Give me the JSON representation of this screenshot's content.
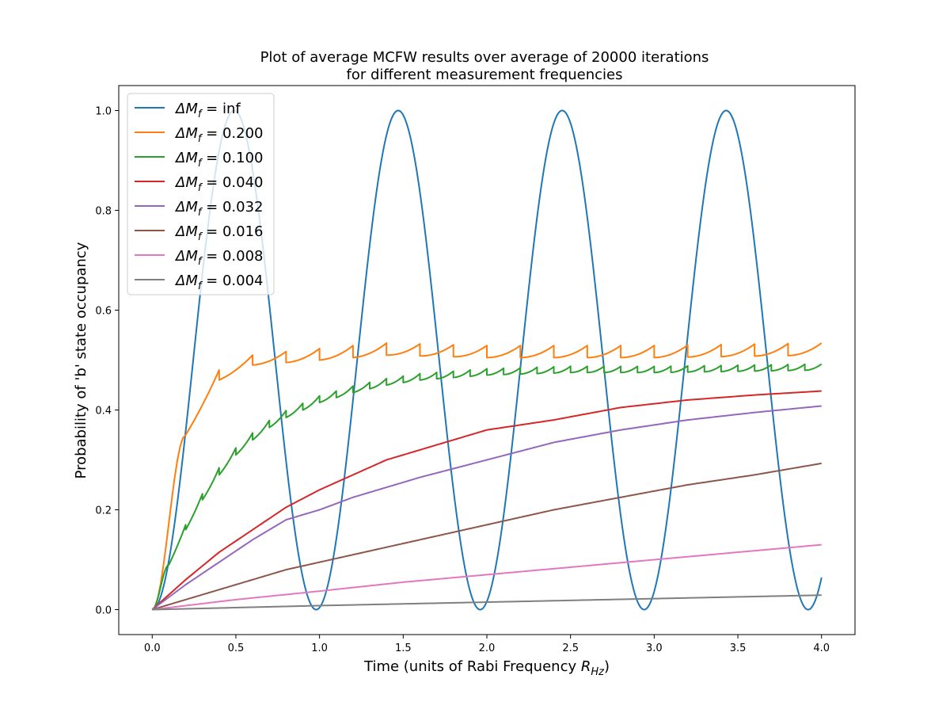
{
  "chart_data": {
    "type": "line",
    "title": "Plot of average MCFW results over average of 20000 iterations",
    "subtitle": "for different measurement frequencies",
    "xlabel": "Time (units of Rabi Frequency R",
    "xlabel_sub": "Hz",
    "xlabel_suffix": ")",
    "ylabel": "Probability of 'b' state occupancy",
    "xlim": [
      -0.2,
      4.2
    ],
    "ylim": [
      -0.05,
      1.05
    ],
    "xticks": [
      0.0,
      0.5,
      1.0,
      1.5,
      2.0,
      2.5,
      3.0,
      3.5,
      4.0
    ],
    "xtick_labels": [
      "0.0",
      "0.5",
      "1.0",
      "1.5",
      "2.0",
      "2.5",
      "3.0",
      "3.5",
      "4.0"
    ],
    "yticks": [
      0.0,
      0.2,
      0.4,
      0.6,
      0.8,
      1.0
    ],
    "ytick_labels": [
      "0.0",
      "0.2",
      "0.4",
      "0.6",
      "0.8",
      "1.0"
    ],
    "grid": false,
    "legend_position": "top-left",
    "series": [
      {
        "label_prefix": "ΔM",
        "label_sub": "f",
        "label_value": " = inf",
        "color": "#1f77b4",
        "model": "rabi",
        "x_max": 4.0,
        "period": 0.98
      },
      {
        "label_prefix": "ΔM",
        "label_sub": "f",
        "label_value": " = 0.200",
        "color": "#ff7f0e",
        "model": "measured",
        "x_max": 4.0,
        "interval": 0.2,
        "envelope": [
          [
            0,
            0
          ],
          [
            0.2,
            0.35
          ],
          [
            0.4,
            0.46
          ],
          [
            0.6,
            0.49
          ],
          [
            0.8,
            0.495
          ],
          [
            1.0,
            0.5
          ],
          [
            1.4,
            0.51
          ],
          [
            2.0,
            0.505
          ],
          [
            3.0,
            0.505
          ],
          [
            4.0,
            0.51
          ]
        ],
        "tooth": [
          [
            0.2,
            0.02
          ],
          [
            0.4,
            0.02
          ],
          [
            0.6,
            0.022
          ],
          [
            1.0,
            0.024
          ],
          [
            2.0,
            0.024
          ],
          [
            4.0,
            0.024
          ]
        ]
      },
      {
        "label_prefix": "ΔM",
        "label_sub": "f",
        "label_value": " = 0.100",
        "color": "#2ca02c",
        "model": "measured",
        "x_max": 4.0,
        "interval": 0.1,
        "envelope": [
          [
            0,
            0
          ],
          [
            0.1,
            0.09
          ],
          [
            0.2,
            0.16
          ],
          [
            0.3,
            0.22
          ],
          [
            0.4,
            0.27
          ],
          [
            0.5,
            0.31
          ],
          [
            0.6,
            0.34
          ],
          [
            0.7,
            0.365
          ],
          [
            0.8,
            0.385
          ],
          [
            1.0,
            0.415
          ],
          [
            1.2,
            0.435
          ],
          [
            1.4,
            0.45
          ],
          [
            1.6,
            0.46
          ],
          [
            2.0,
            0.47
          ],
          [
            2.5,
            0.475
          ],
          [
            3.0,
            0.475
          ],
          [
            4.0,
            0.48
          ]
        ],
        "tooth": [
          [
            0.1,
            0.01
          ],
          [
            0.3,
            0.014
          ],
          [
            0.6,
            0.014
          ],
          [
            1.0,
            0.013
          ],
          [
            4.0,
            0.012
          ]
        ]
      },
      {
        "label_prefix": "ΔM",
        "label_sub": "f",
        "label_value": " = 0.040",
        "color": "#d62728",
        "model": "curve",
        "points": [
          [
            0,
            0
          ],
          [
            0.2,
            0.06
          ],
          [
            0.4,
            0.115
          ],
          [
            0.6,
            0.16
          ],
          [
            0.8,
            0.205
          ],
          [
            1.0,
            0.24
          ],
          [
            1.2,
            0.27
          ],
          [
            1.4,
            0.3
          ],
          [
            1.6,
            0.32
          ],
          [
            1.8,
            0.34
          ],
          [
            2.0,
            0.36
          ],
          [
            2.4,
            0.38
          ],
          [
            2.8,
            0.405
          ],
          [
            3.2,
            0.42
          ],
          [
            3.6,
            0.43
          ],
          [
            4.0,
            0.438
          ]
        ]
      },
      {
        "label_prefix": "ΔM",
        "label_sub": "f",
        "label_value": " = 0.032",
        "color": "#9467bd",
        "model": "curve",
        "points": [
          [
            0,
            0
          ],
          [
            0.2,
            0.05
          ],
          [
            0.4,
            0.095
          ],
          [
            0.6,
            0.14
          ],
          [
            0.8,
            0.18
          ],
          [
            1.0,
            0.2
          ],
          [
            1.2,
            0.225
          ],
          [
            1.4,
            0.245
          ],
          [
            1.6,
            0.265
          ],
          [
            2.0,
            0.3
          ],
          [
            2.4,
            0.335
          ],
          [
            2.8,
            0.36
          ],
          [
            3.2,
            0.38
          ],
          [
            3.6,
            0.395
          ],
          [
            4.0,
            0.408
          ]
        ]
      },
      {
        "label_prefix": "ΔM",
        "label_sub": "f",
        "label_value": " = 0.016",
        "color": "#8c564b",
        "model": "curve",
        "points": [
          [
            0,
            0
          ],
          [
            0.4,
            0.04
          ],
          [
            0.8,
            0.08
          ],
          [
            1.2,
            0.11
          ],
          [
            1.6,
            0.14
          ],
          [
            2.0,
            0.17
          ],
          [
            2.4,
            0.2
          ],
          [
            2.8,
            0.225
          ],
          [
            3.2,
            0.25
          ],
          [
            3.6,
            0.27
          ],
          [
            4.0,
            0.293
          ]
        ]
      },
      {
        "label_prefix": "ΔM",
        "label_sub": "f",
        "label_value": " = 0.008",
        "color": "#e377c2",
        "model": "curve",
        "points": [
          [
            0,
            0
          ],
          [
            0.5,
            0.02
          ],
          [
            1.0,
            0.037
          ],
          [
            1.5,
            0.055
          ],
          [
            2.0,
            0.07
          ],
          [
            2.5,
            0.085
          ],
          [
            3.0,
            0.1
          ],
          [
            3.5,
            0.115
          ],
          [
            4.0,
            0.13
          ]
        ]
      },
      {
        "label_prefix": "ΔM",
        "label_sub": "f",
        "label_value": " = 0.004",
        "color": "#7f7f7f",
        "model": "curve",
        "points": [
          [
            0,
            0
          ],
          [
            1.0,
            0.008
          ],
          [
            2.0,
            0.015
          ],
          [
            3.0,
            0.022
          ],
          [
            4.0,
            0.029
          ]
        ]
      }
    ]
  }
}
